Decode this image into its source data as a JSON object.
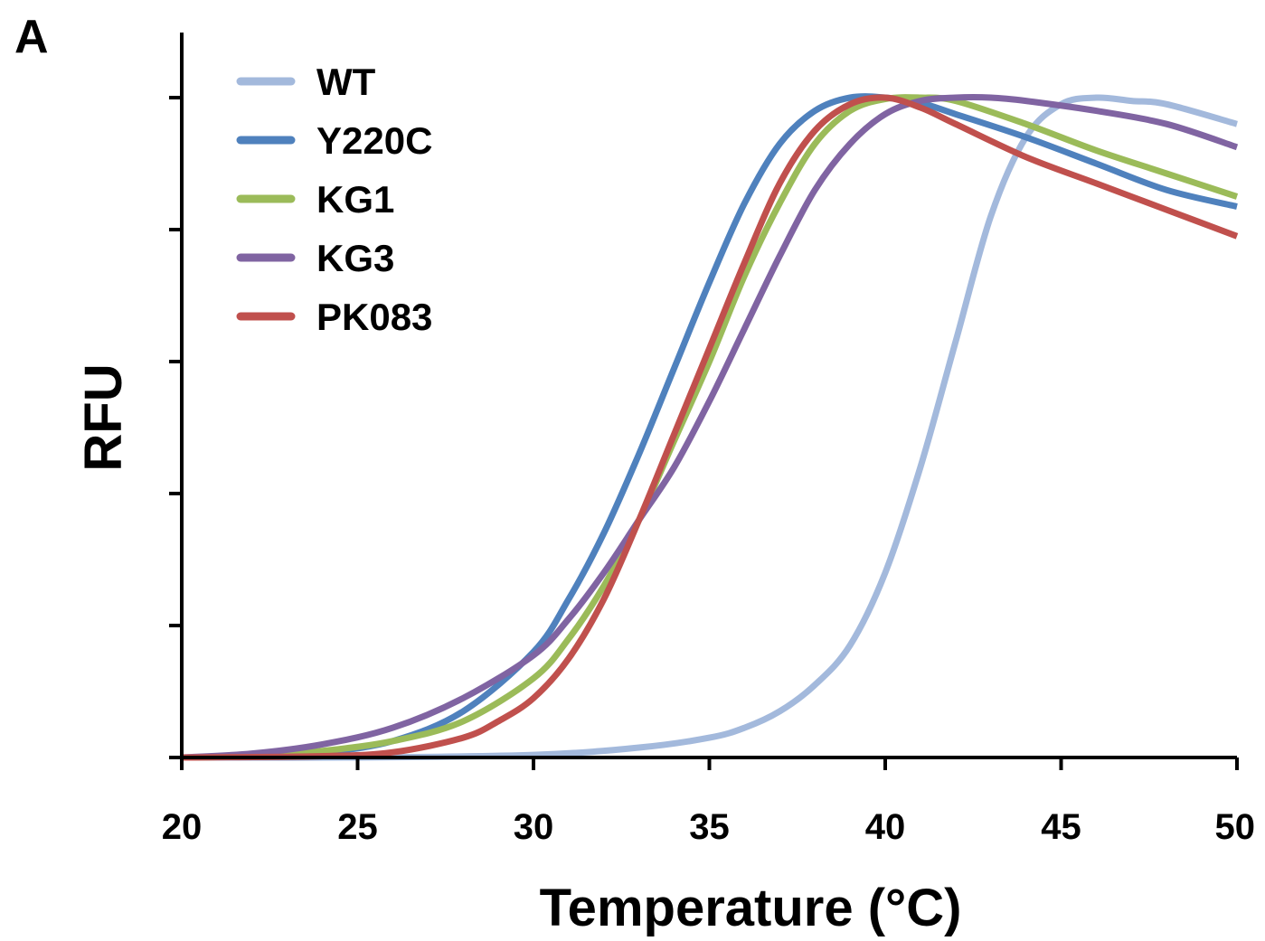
{
  "panel_label": "A",
  "chart_data": {
    "type": "line",
    "xlabel": "Temperature (°C)",
    "ylabel": "RFU",
    "xlim": [
      20,
      50
    ],
    "ylim": [
      0,
      100
    ],
    "x_ticks": [
      20,
      25,
      30,
      35,
      40,
      45,
      50
    ],
    "x_tick_labels": [
      "20",
      "25",
      "30",
      "35",
      "40",
      "45",
      "50"
    ],
    "y_ticks": [
      0,
      20,
      40,
      60,
      80,
      100
    ],
    "grid": false,
    "legend": "top-left",
    "series": [
      {
        "name": "WT",
        "color": "#a3b9dc",
        "x": [
          20,
          25,
          30,
          33,
          35,
          36,
          37,
          38,
          39,
          40,
          41,
          42,
          43,
          44,
          45,
          46,
          47,
          48,
          50
        ],
        "y": [
          0,
          0,
          0.4,
          1.5,
          3,
          4.5,
          7,
          11,
          17,
          28,
          44,
          63,
          82,
          94,
          99,
          100,
          99.5,
          99,
          96
        ]
      },
      {
        "name": "Y220C",
        "color": "#4f81bd",
        "x": [
          20,
          22,
          24,
          26,
          28,
          30,
          31,
          32,
          33,
          34,
          35,
          36,
          37,
          38,
          39,
          40,
          41,
          42,
          44,
          46,
          48,
          50
        ],
        "y": [
          0,
          0.2,
          0.8,
          2.5,
          7,
          16,
          24,
          34,
          46,
          59,
          72,
          84,
          93,
          98,
          100,
          100,
          99.2,
          97.5,
          94,
          90,
          86,
          83.5
        ]
      },
      {
        "name": "KG1",
        "color": "#9bbb59",
        "x": [
          20,
          22,
          24,
          26,
          28,
          30,
          31,
          32,
          33,
          34,
          35,
          36,
          37,
          38,
          39,
          40,
          41,
          42,
          44,
          46,
          48,
          50
        ],
        "y": [
          0,
          0.2,
          1,
          2.5,
          5.5,
          12,
          18,
          26,
          36,
          48,
          60,
          73,
          84,
          93,
          98,
          99.8,
          100,
          99.5,
          96,
          92,
          88.5,
          85
        ]
      },
      {
        "name": "KG3",
        "color": "#8064a2",
        "x": [
          20,
          22,
          24,
          26,
          28,
          30,
          31,
          32,
          33,
          34,
          35,
          36,
          37,
          38,
          39,
          40,
          41,
          42,
          43,
          44,
          46,
          48,
          50
        ],
        "y": [
          0,
          0.6,
          2,
          4.5,
          9,
          15.5,
          21,
          28,
          36,
          44,
          54,
          65,
          76,
          86,
          93,
          97.5,
          99.5,
          100,
          100,
          99.5,
          98,
          96,
          92.5
        ]
      },
      {
        "name": "PK083",
        "color": "#c0504d",
        "x": [
          20,
          24,
          26,
          28,
          29,
          30,
          31,
          32,
          33,
          34,
          35,
          36,
          37,
          38,
          39,
          40,
          41,
          42,
          44,
          46,
          48,
          50
        ],
        "y": [
          0,
          0.2,
          0.8,
          3,
          5.5,
          9,
          15,
          24,
          36,
          49,
          62,
          75,
          87,
          95,
          99,
          100,
          98.5,
          96,
          91,
          87,
          83,
          79
        ]
      }
    ]
  }
}
